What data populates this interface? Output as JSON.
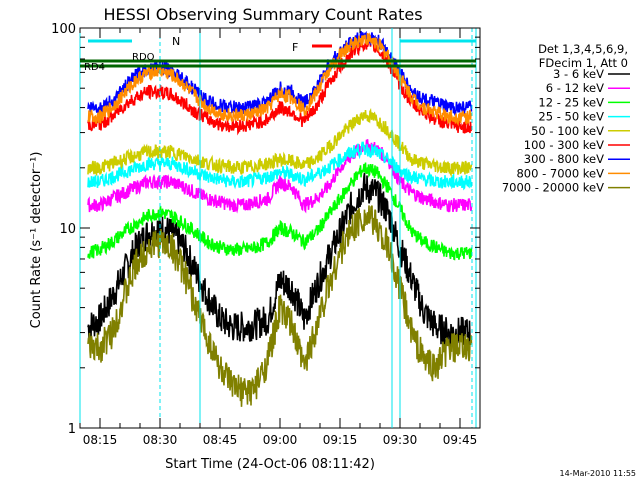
{
  "chart_data": {
    "type": "line",
    "title": "HESSI Observing Summary Count Rates",
    "xlabel": "Start Time (24-Oct-06 08:11:42)",
    "ylabel": "Count Rate (s⁻¹ detector⁻¹)",
    "y_scale": "log",
    "ylim": [
      1,
      100
    ],
    "xlim": [
      "08:10",
      "09:50"
    ],
    "x_ticks": [
      "08:15",
      "08:30",
      "08:45",
      "09:00",
      "09:15",
      "09:30",
      "09:45"
    ],
    "y_ticks": [
      "1",
      "10",
      "100"
    ],
    "grid": false,
    "legend_position": "right",
    "legend_header": [
      "Det 1,3,4,5,6,9,",
      "FDecim 1, Att 0"
    ],
    "footer_date": "14-Mar-2010 11:55",
    "flag_labels": [
      {
        "text": "N",
        "color": "#00e5ee"
      },
      {
        "text": "RDO",
        "color": "#006400"
      },
      {
        "text": "RD4",
        "color": "#006400"
      },
      {
        "text": "F",
        "color": "#ff0000"
      }
    ],
    "x": [
      "08:12",
      "08:15",
      "08:18",
      "08:21",
      "08:24",
      "08:27",
      "08:30",
      "08:33",
      "08:36",
      "08:39",
      "08:42",
      "08:45",
      "08:48",
      "08:51",
      "08:54",
      "08:57",
      "09:00",
      "09:03",
      "09:06",
      "09:09",
      "09:12",
      "09:15",
      "09:18",
      "09:21",
      "09:24",
      "09:27",
      "09:30",
      "09:33",
      "09:36",
      "09:39",
      "09:42",
      "09:45",
      "09:48"
    ],
    "series": [
      {
        "name": "3 - 6 keV",
        "color": "#000000",
        "values": [
          3.2,
          3.5,
          4.5,
          6,
          8,
          9.5,
          10,
          9.5,
          8,
          6,
          4.5,
          3.5,
          3.2,
          3.2,
          3.3,
          3.5,
          5.5,
          5,
          3.5,
          5,
          7,
          9.5,
          13,
          16,
          15,
          12,
          8,
          5.5,
          3.8,
          3.2,
          3,
          3,
          3
        ]
      },
      {
        "name": "6 - 12 keV",
        "color": "#ff00ff",
        "values": [
          13,
          13,
          14,
          15,
          16,
          17,
          17,
          17,
          16,
          15,
          14,
          13.5,
          13,
          13,
          13.5,
          14,
          17,
          16,
          13,
          14,
          16,
          20,
          23,
          26,
          25,
          22,
          17,
          15,
          14,
          13.5,
          13,
          13,
          13
        ]
      },
      {
        "name": "12 - 25 keV",
        "color": "#00ff00",
        "values": [
          7.5,
          7.8,
          8.5,
          9.5,
          10.5,
          11.5,
          12,
          11.5,
          10.5,
          9.5,
          8.5,
          8,
          7.8,
          7.8,
          8,
          8.5,
          10,
          9.5,
          8.5,
          9.5,
          11.5,
          14,
          17,
          20,
          19,
          16,
          12.5,
          9.5,
          8.5,
          8,
          7.5,
          7.5,
          7.5
        ]
      },
      {
        "name": "25 - 50 keV",
        "color": "#00ffff",
        "values": [
          17,
          17,
          18,
          19,
          20,
          21,
          21,
          21,
          20,
          19,
          18,
          17.5,
          17,
          17,
          17.5,
          18,
          19,
          18.5,
          17.5,
          18.5,
          20,
          22,
          24,
          25,
          24,
          22,
          19.5,
          18,
          17.5,
          17,
          17,
          17,
          17
        ]
      },
      {
        "name": "50 - 100 keV",
        "color": "#cccc00",
        "values": [
          20,
          20,
          21,
          22,
          23,
          24,
          24,
          24,
          23,
          22,
          21,
          20.5,
          20,
          20,
          20.5,
          21,
          22,
          21.5,
          20.5,
          22,
          25,
          29,
          33,
          37,
          35,
          31,
          26,
          22,
          21,
          20.5,
          20,
          20,
          20
        ]
      },
      {
        "name": "100 - 300 keV",
        "color": "#ff0000",
        "values": [
          33,
          33,
          36,
          41,
          45,
          48,
          48,
          46,
          42,
          38,
          35,
          33,
          32.5,
          32.5,
          33.5,
          35,
          40,
          38,
          34,
          40,
          52,
          64,
          76,
          84,
          80,
          68,
          52,
          42,
          38,
          35,
          33,
          32,
          32
        ]
      },
      {
        "name": "300 - 800 keV",
        "color": "#0000ff",
        "values": [
          40,
          40,
          43,
          50,
          58,
          63,
          64,
          61,
          55,
          48,
          43,
          41,
          40,
          40,
          41,
          43,
          50,
          48,
          42,
          50,
          64,
          76,
          86,
          92,
          88,
          76,
          60,
          48,
          44,
          42,
          40,
          40,
          40
        ]
      },
      {
        "name": "800 - 7000 keV",
        "color": "#ff8c00",
        "values": [
          36,
          36,
          40,
          47,
          55,
          60,
          61,
          58,
          52,
          45,
          40,
          37.5,
          36.5,
          36.5,
          37.5,
          40,
          47,
          45,
          39,
          47,
          61,
          73,
          83,
          89,
          85,
          73,
          57,
          45,
          40,
          38,
          36,
          36,
          36
        ]
      },
      {
        "name": "7000 - 20000 keV",
        "color": "#808000",
        "values": [
          2.5,
          2.5,
          3,
          4.5,
          6.5,
          8,
          8.5,
          8,
          6,
          4,
          2.8,
          2,
          1.6,
          1.5,
          1.6,
          2.2,
          4,
          3.2,
          2,
          3.2,
          5,
          7.5,
          10,
          11.5,
          10.5,
          8,
          5,
          3,
          2.2,
          2,
          2.5,
          2.5,
          2.5
        ]
      }
    ]
  }
}
